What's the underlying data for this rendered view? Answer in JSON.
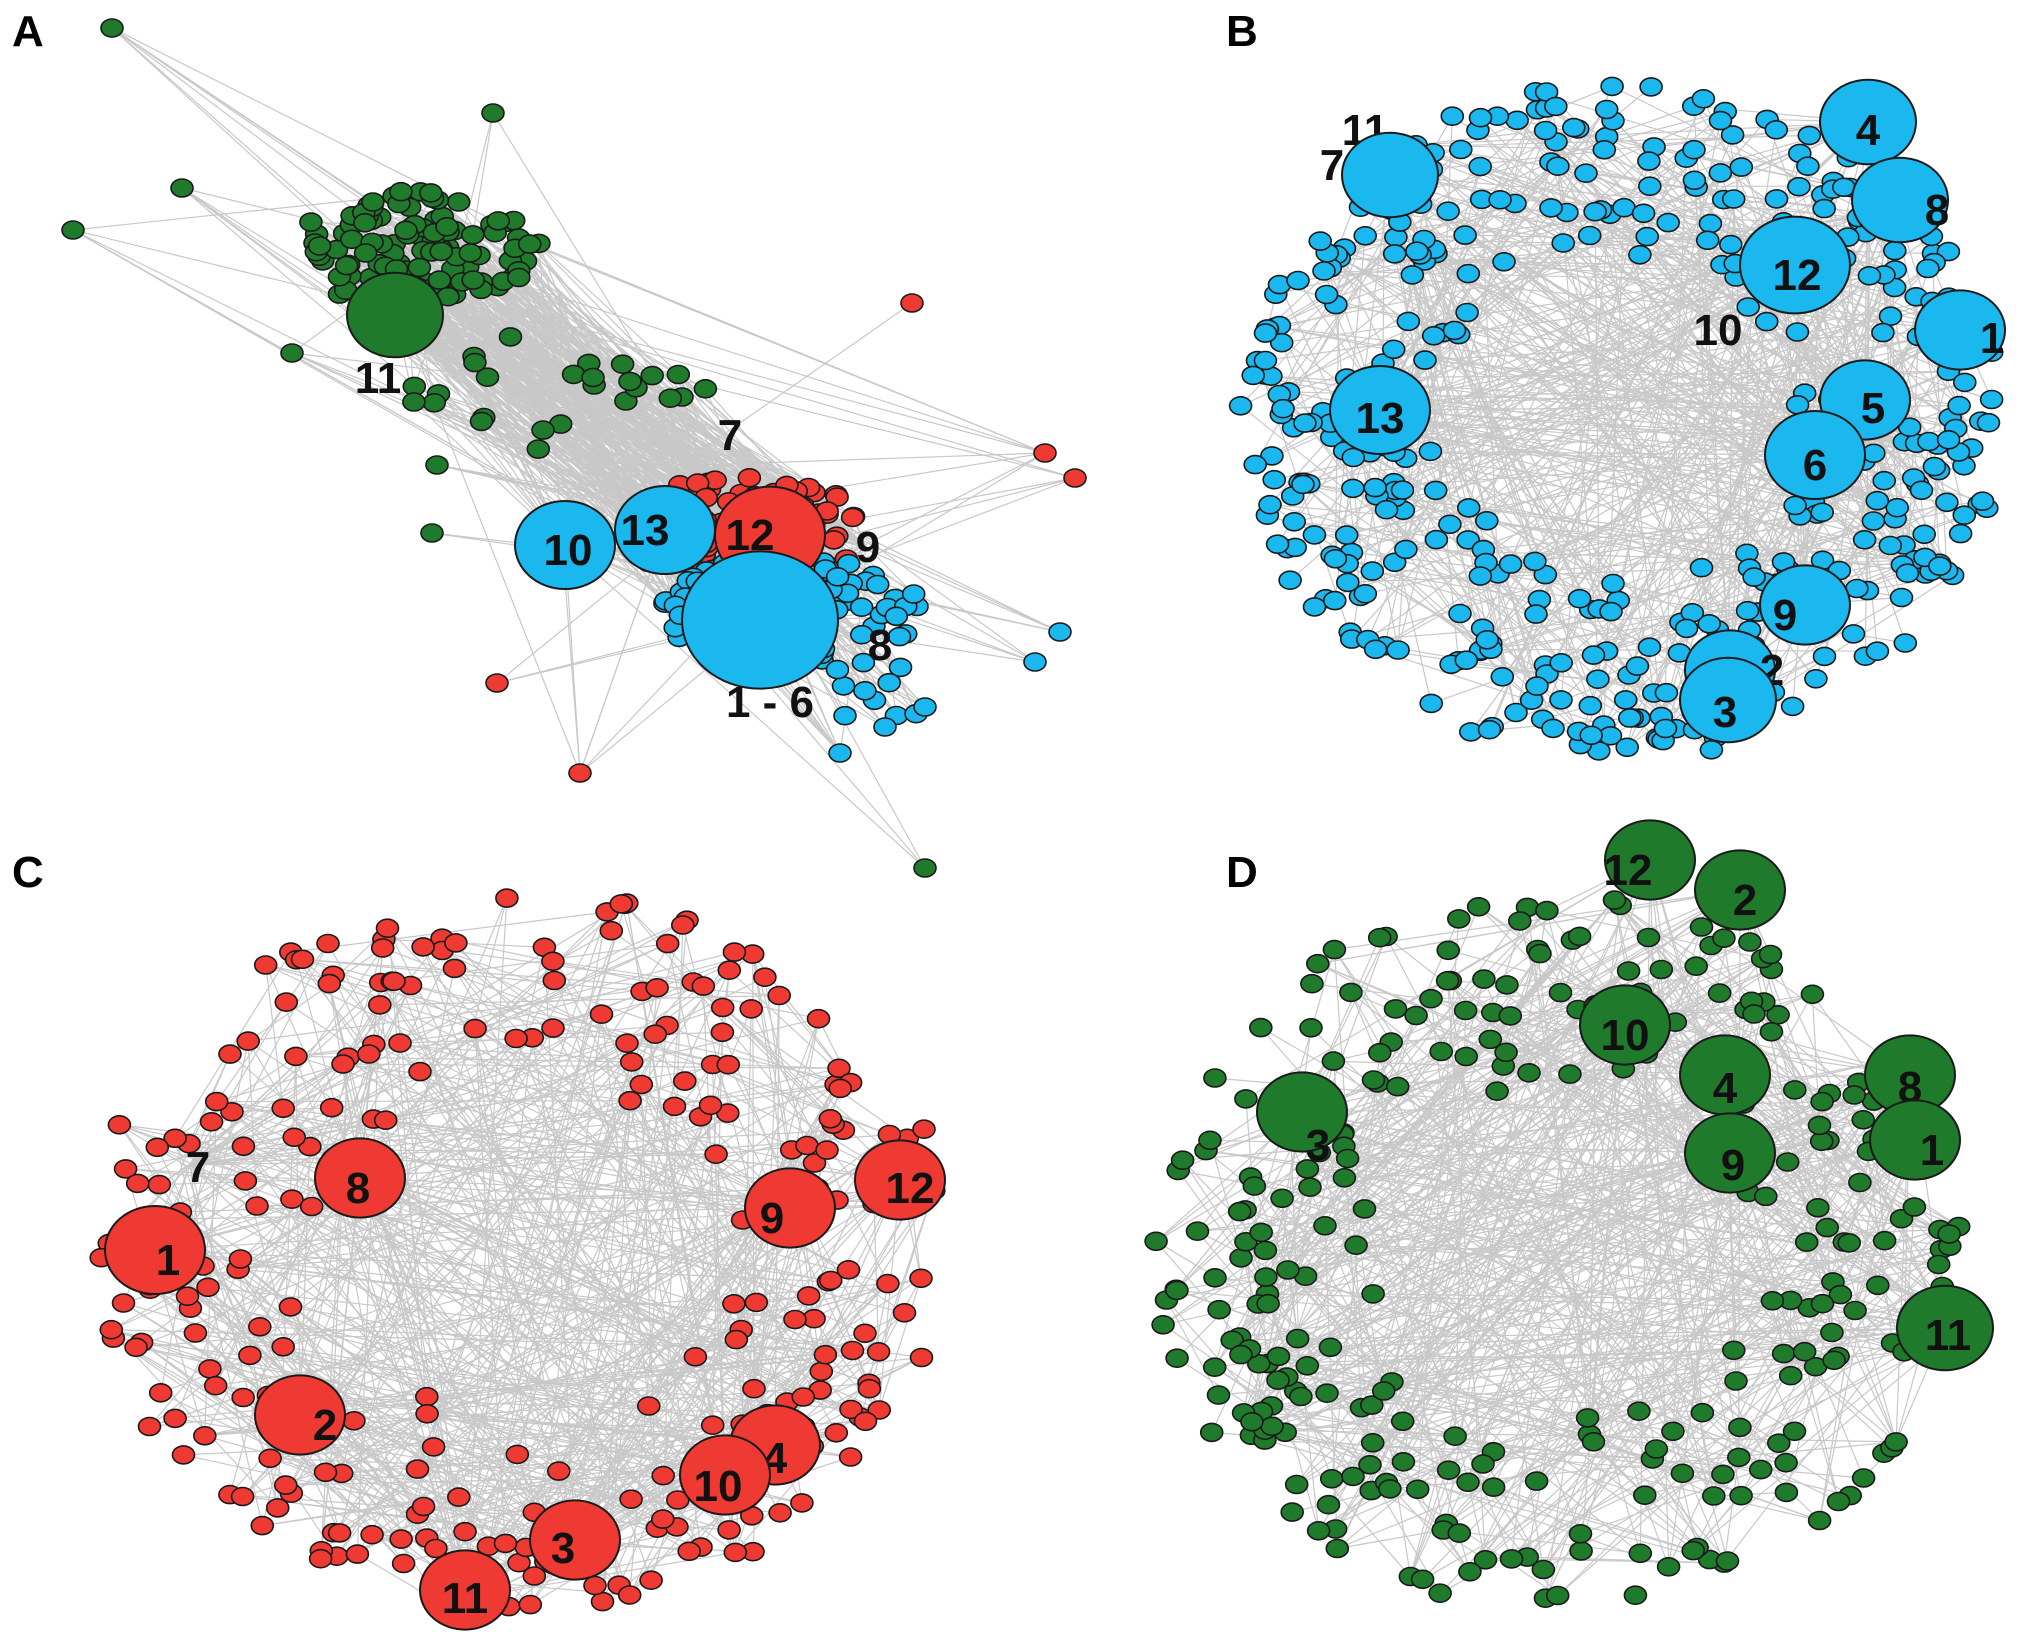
{
  "colors": {
    "blue": "#1ab8ee",
    "red": "#ee3a33",
    "green": "#1f7a2c",
    "edge": "#c8c8c8"
  },
  "panels": [
    {
      "id": "A",
      "letter": "A",
      "hub_labels": [
        "11",
        "7",
        "10",
        "13",
        "12",
        "9",
        "8",
        "1 - 6"
      ]
    },
    {
      "id": "B",
      "letter": "B",
      "hub_labels": [
        "11",
        "7",
        "4",
        "8",
        "12",
        "10",
        "1",
        "13",
        "5",
        "6",
        "9",
        "2",
        "3"
      ]
    },
    {
      "id": "C",
      "letter": "C",
      "hub_labels": [
        "7",
        "8",
        "1",
        "9",
        "12",
        "2",
        "4",
        "10",
        "3",
        "11"
      ]
    },
    {
      "id": "D",
      "letter": "D",
      "hub_labels": [
        "12",
        "2",
        "10",
        "4",
        "8",
        "3",
        "9",
        "1",
        "11"
      ]
    }
  ]
}
